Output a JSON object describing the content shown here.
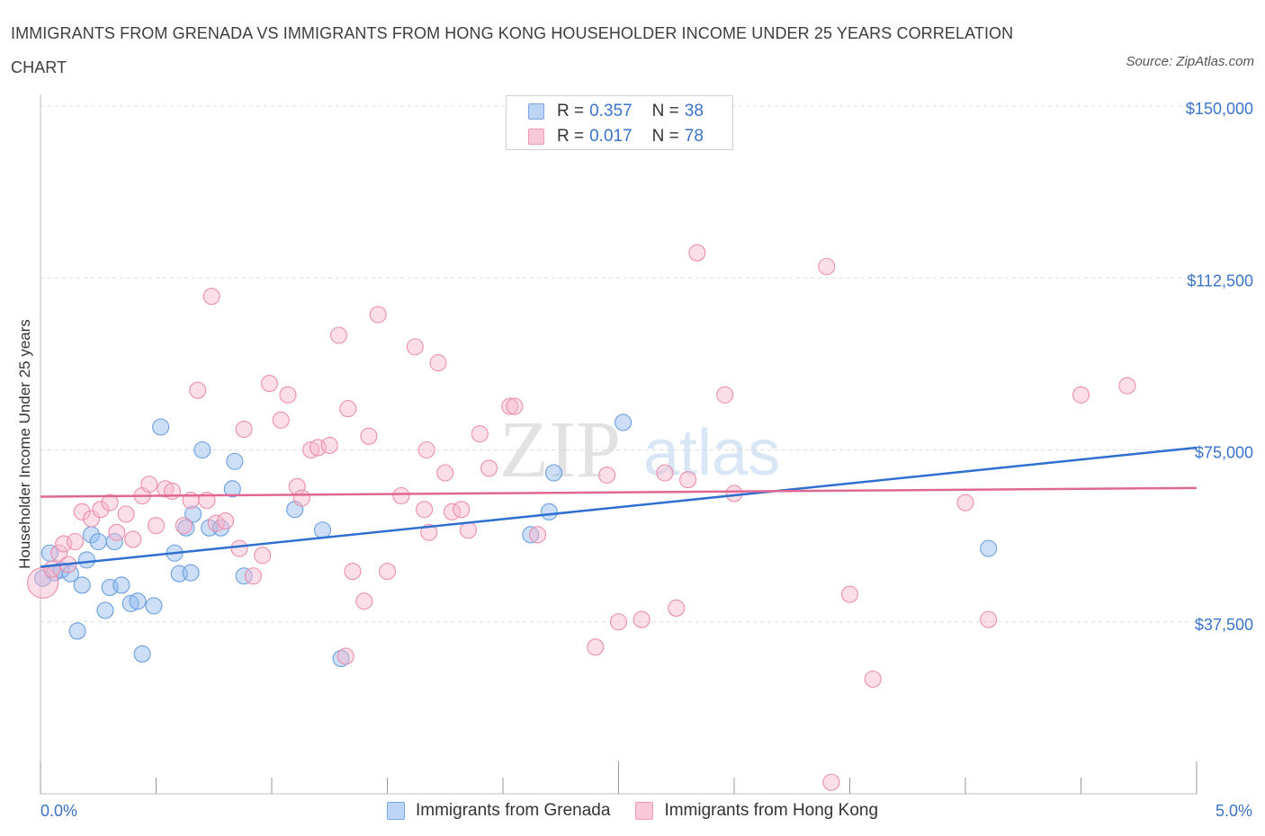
{
  "title": "IMMIGRANTS FROM GRENADA VS IMMIGRANTS FROM HONG KONG HOUSEHOLDER INCOME UNDER 25 YEARS CORRELATION CHART",
  "source": "Source: ZipAtlas.com",
  "watermark": {
    "zip": "ZIP",
    "atlas": "atlas"
  },
  "legend": {
    "r_label": "R =",
    "n_label": "N =",
    "rows": [
      {
        "r": "0.357",
        "n": "38"
      },
      {
        "r": "0.017",
        "n": "78"
      }
    ]
  },
  "chart_data": {
    "type": "scatter",
    "xlabel": "",
    "ylabel": "Householder Income Under 25 years",
    "xlim": [
      0,
      5
    ],
    "ylim": [
      0,
      150000
    ],
    "x_tick_labels": [
      "0.0%",
      "5.0%"
    ],
    "y_tick_labels": [
      "$150,000",
      "$112,500",
      "$75,000",
      "$37,500"
    ],
    "y_ticks": [
      150000,
      112500,
      75000,
      37500
    ],
    "grid": true,
    "legend_position": "bottom",
    "series": [
      {
        "name": "Immigrants from Grenada",
        "color": "#8fb8ee",
        "stroke": "#6a9fe0",
        "trend_color": "#2f6fd0",
        "trend": [
          [
            0,
            49500
          ],
          [
            5,
            75500
          ]
        ],
        "points": [
          [
            0.01,
            47000
          ],
          [
            0.04,
            52500
          ],
          [
            0.06,
            48200
          ],
          [
            0.09,
            48800
          ],
          [
            0.13,
            48000
          ],
          [
            0.18,
            45500
          ],
          [
            0.2,
            51000
          ],
          [
            0.22,
            56500
          ],
          [
            0.25,
            55000
          ],
          [
            0.28,
            40000
          ],
          [
            0.3,
            45000
          ],
          [
            0.32,
            55000
          ],
          [
            0.35,
            45500
          ],
          [
            0.39,
            41500
          ],
          [
            0.42,
            42000
          ],
          [
            0.49,
            41000
          ],
          [
            0.16,
            35500
          ],
          [
            0.44,
            30500
          ],
          [
            0.52,
            80000
          ],
          [
            0.58,
            52500
          ],
          [
            0.63,
            58000
          ],
          [
            0.66,
            61000
          ],
          [
            0.73,
            58000
          ],
          [
            0.78,
            58000
          ],
          [
            0.83,
            66500
          ],
          [
            0.84,
            72500
          ],
          [
            0.88,
            47500
          ],
          [
            1.1,
            62000
          ],
          [
            1.22,
            57500
          ],
          [
            1.3,
            29500
          ],
          [
            0.7,
            75000
          ],
          [
            0.6,
            48000
          ],
          [
            2.12,
            56500
          ],
          [
            2.2,
            61500
          ],
          [
            2.22,
            70000
          ],
          [
            2.52,
            81000
          ],
          [
            4.1,
            53500
          ],
          [
            0.65,
            48200
          ]
        ]
      },
      {
        "name": "Immigrants from Hong Kong",
        "color": "#f7b6cb",
        "stroke": "#ec8eac",
        "trend_color": "#e06890",
        "trend": [
          [
            0,
            64800
          ],
          [
            5,
            66700
          ]
        ],
        "points": [
          [
            0.01,
            46000
          ],
          [
            0.05,
            49000
          ],
          [
            0.08,
            52500
          ],
          [
            0.1,
            54500
          ],
          [
            0.12,
            50000
          ],
          [
            0.15,
            55000
          ],
          [
            0.18,
            61500
          ],
          [
            0.22,
            60000
          ],
          [
            0.26,
            62000
          ],
          [
            0.3,
            63500
          ],
          [
            0.33,
            57000
          ],
          [
            0.37,
            61000
          ],
          [
            0.4,
            55500
          ],
          [
            0.44,
            65000
          ],
          [
            0.47,
            67500
          ],
          [
            0.5,
            58500
          ],
          [
            0.54,
            66500
          ],
          [
            0.57,
            66000
          ],
          [
            0.62,
            58500
          ],
          [
            0.65,
            64000
          ],
          [
            0.68,
            88000
          ],
          [
            0.72,
            64000
          ],
          [
            0.74,
            108500
          ],
          [
            0.76,
            59000
          ],
          [
            0.8,
            59500
          ],
          [
            0.86,
            53500
          ],
          [
            0.88,
            79500
          ],
          [
            0.92,
            47500
          ],
          [
            0.96,
            52000
          ],
          [
            0.99,
            89500
          ],
          [
            1.04,
            81500
          ],
          [
            1.07,
            87000
          ],
          [
            1.11,
            67000
          ],
          [
            1.13,
            64500
          ],
          [
            1.17,
            75000
          ],
          [
            1.2,
            75500
          ],
          [
            1.25,
            76000
          ],
          [
            1.29,
            100000
          ],
          [
            1.32,
            30000
          ],
          [
            1.33,
            84000
          ],
          [
            1.35,
            48500
          ],
          [
            1.4,
            42000
          ],
          [
            1.42,
            78000
          ],
          [
            1.46,
            104500
          ],
          [
            1.5,
            48500
          ],
          [
            1.56,
            65000
          ],
          [
            1.62,
            97500
          ],
          [
            1.66,
            62000
          ],
          [
            1.67,
            75000
          ],
          [
            1.68,
            57000
          ],
          [
            1.72,
            94000
          ],
          [
            1.75,
            70000
          ],
          [
            1.78,
            61500
          ],
          [
            1.82,
            62000
          ],
          [
            1.85,
            57500
          ],
          [
            1.9,
            78500
          ],
          [
            1.94,
            71000
          ],
          [
            2.03,
            84500
          ],
          [
            2.05,
            84500
          ],
          [
            2.15,
            56500
          ],
          [
            2.4,
            32000
          ],
          [
            2.45,
            69500
          ],
          [
            2.5,
            37500
          ],
          [
            2.6,
            38000
          ],
          [
            2.7,
            70000
          ],
          [
            2.75,
            40500
          ],
          [
            2.8,
            68500
          ],
          [
            2.84,
            118000
          ],
          [
            2.96,
            87000
          ],
          [
            3.0,
            65500
          ],
          [
            3.4,
            115000
          ],
          [
            3.5,
            43500
          ],
          [
            3.6,
            25000
          ],
          [
            4.0,
            63500
          ],
          [
            4.1,
            38000
          ],
          [
            4.5,
            87000
          ],
          [
            4.7,
            89000
          ],
          [
            3.42,
            2500
          ]
        ]
      }
    ]
  }
}
